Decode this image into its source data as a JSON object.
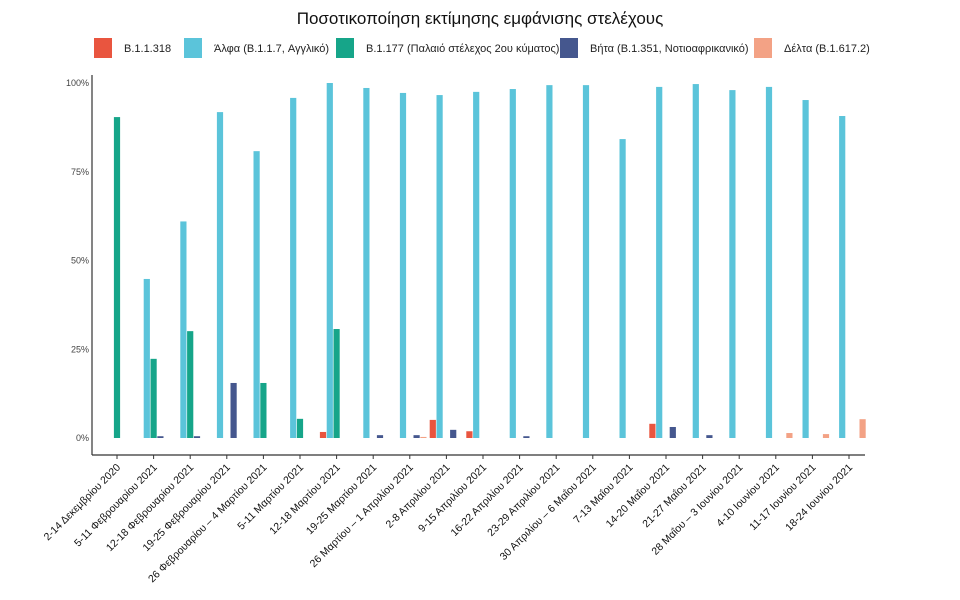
{
  "chart_data": {
    "type": "bar",
    "title": "Ποσοτικοποίηση εκτίμησης εμφάνισης στελέχους",
    "xlabel": "",
    "ylabel": "",
    "ylim": [
      0,
      100
    ],
    "yticks": [
      "0%",
      "25%",
      "50%",
      "75%",
      "100%"
    ],
    "grid": false,
    "legend_position": "top",
    "categories": [
      "2-14 Δεκεμβρίου 2020",
      "5-11 Φεβρουαρίου 2021",
      "12-18 Φεβρουαρίου 2021",
      "19-25 Φεβρουαρίου 2021",
      "26 Φεβρουαρίου – 4 Μαρτίου 2021",
      "5-11 Μαρτίου 2021",
      "12-18 Μαρτίου 2021",
      "19-25 Μαρτίου 2021",
      "26 Μαρτίου – 1 Απριλίου 2021",
      "2-8 Απριλίου 2021",
      "9-15 Απριλίου 2021",
      "16-22 Απριλίου 2021",
      "23-29 Απριλίου 2021",
      "30 Απριλίου – 6 Μαΐου 2021",
      "7-13 Μαΐου 2021",
      "14-20 Μαΐου 2021",
      "21-27 Μαΐου 2021",
      "28 Μαΐου – 3 Ιουνίου 2021",
      "4-10 Ιουνίου 2021",
      "11-17 Ιουνίου 2021",
      "18-24 Ιουνίου 2021"
    ],
    "series": [
      {
        "name": "B.1.1.318",
        "color": "#e9553f",
        "values": [
          0,
          0,
          0,
          0,
          0,
          0,
          1.7,
          0,
          0,
          5.1,
          1.9,
          0,
          0,
          0,
          0,
          4.0,
          0,
          0,
          0,
          0,
          0
        ]
      },
      {
        "name": "Άλφα (B.1.1.7, Αγγλικό)",
        "color": "#5bc4da",
        "values": [
          0,
          44.8,
          61,
          91.8,
          80.8,
          95.8,
          100,
          98.6,
          97.2,
          96.6,
          97.5,
          98.3,
          99.4,
          99.4,
          84.2,
          98.9,
          99.7,
          98,
          98.9,
          95.2,
          90.7
        ]
      },
      {
        "name": "B.1.177 (Παλαιό στέλεχος 2ου κύματος)",
        "color": "#16a589",
        "values": [
          90.4,
          22.3,
          30.1,
          0,
          15.5,
          5.4,
          30.7,
          0,
          0,
          0,
          0,
          0,
          0,
          0,
          0,
          0,
          0,
          0,
          0,
          0,
          0
        ]
      },
      {
        "name": "Βήτα (B.1.351, Νοτιοαφρικανικό)",
        "color": "#45578e",
        "values": [
          0,
          0.5,
          0.5,
          15.5,
          0,
          0,
          0,
          0.8,
          0.8,
          2.3,
          0,
          0.5,
          0,
          0,
          0,
          3.1,
          0.8,
          0,
          0,
          0,
          0
        ]
      },
      {
        "name": "Δέλτα (B.1.617.2)",
        "color": "#f3a285",
        "values": [
          0,
          0,
          0,
          0,
          0,
          0,
          0,
          0,
          0.3,
          0,
          0,
          0,
          0,
          0,
          0,
          0,
          0,
          0,
          1.4,
          1.1,
          5.3
        ]
      }
    ]
  }
}
